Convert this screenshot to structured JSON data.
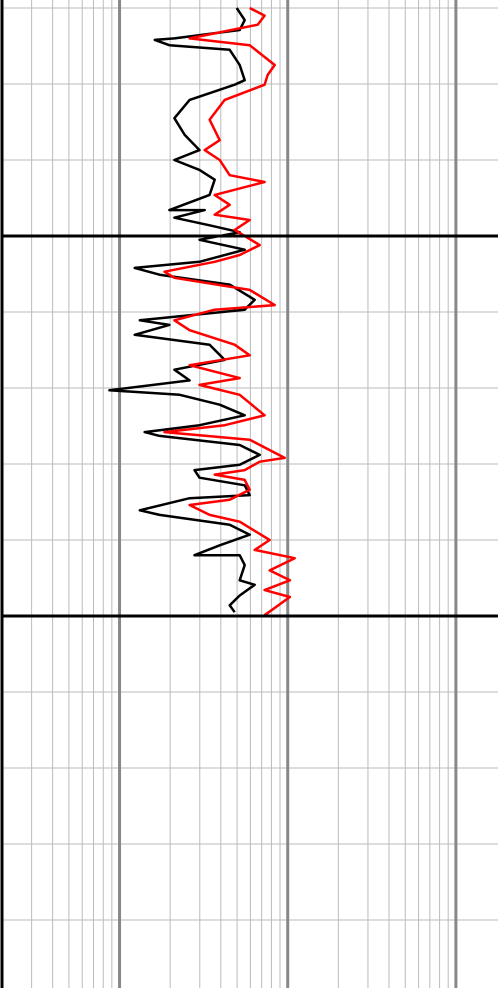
{
  "chart_data": {
    "type": "log_track",
    "xscale": "log",
    "xlim": [
      0.2,
      178
    ],
    "xticks": [
      0.2,
      0.3,
      0.4,
      0.5,
      0.6,
      0.7,
      0.8,
      0.9,
      1,
      2,
      3,
      4,
      5,
      6,
      7,
      8,
      9,
      10,
      20,
      30,
      40,
      50,
      60,
      70,
      80,
      90,
      100
    ],
    "x_major_ticks": [
      1,
      10,
      100
    ],
    "ylim": [
      18.95,
      148.95
    ],
    "y_inverted": true,
    "yticks": [
      20,
      30,
      40,
      50,
      60,
      70,
      80,
      90,
      100,
      110,
      120,
      130,
      140
    ],
    "y_major_ticks": [
      50,
      100
    ],
    "grid": true,
    "series": [
      {
        "color": "#000000",
        "depth": [
          20.0,
          21.6,
          22.9,
          24.0,
          24.2,
          24.9,
          25.5,
          27.5,
          29.5,
          30.1,
          32.1,
          34.5,
          36.7,
          38.7,
          40.0,
          41.3,
          42.6,
          44.6,
          46.6,
          46.6,
          47.6,
          48.6,
          49.5,
          50.5,
          51.8,
          53.4,
          54.2,
          55.1,
          56.4,
          58.4,
          59.7,
          61.1,
          61.7,
          63.0,
          64.3,
          66.3,
          67.6,
          69.0,
          70.3,
          70.9,
          72.2,
          73.6,
          74.9,
          75.8,
          76.3,
          77.5,
          78.8,
          80.1,
          80.8,
          81.8,
          82.8,
          84.1,
          84.5,
          86.1,
          86.7,
          88.0,
          89.3,
          90.7,
          92.0,
          92.0,
          93.3,
          95.3,
          95.9,
          97.3,
          98.6,
          99.5
        ],
        "values": [
          4.97,
          5.55,
          5.18,
          2.12,
          1.62,
          1.98,
          4.52,
          5.18,
          5.55,
          4.84,
          2.61,
          2.12,
          2.44,
          2.99,
          2.12,
          2.99,
          3.68,
          3.43,
          1.98,
          3.21,
          2.12,
          3.43,
          5.18,
          2.99,
          5.55,
          2.99,
          1.23,
          1.73,
          4.52,
          6.36,
          5.55,
          1.32,
          1.98,
          1.23,
          3.43,
          4.22,
          2.12,
          2.61,
          0.87,
          2.28,
          3.94,
          5.55,
          2.99,
          1.41,
          1.73,
          5.18,
          6.81,
          5.18,
          2.79,
          2.99,
          5.55,
          5.94,
          2.61,
          1.32,
          1.73,
          4.52,
          5.94,
          3.94,
          2.79,
          5.18,
          5.55,
          5.18,
          6.36,
          5.18,
          4.52,
          4.84
        ]
      },
      {
        "color": "#ff0000",
        "depth": [
          20.0,
          21.0,
          22.2,
          24.0,
          24.9,
          27.5,
          28.8,
          30.1,
          32.1,
          34.7,
          37.4,
          38.7,
          40.0,
          42.0,
          42.9,
          44.6,
          45.9,
          47.2,
          47.9,
          49.2,
          51.2,
          52.5,
          53.4,
          54.7,
          55.5,
          57.1,
          59.1,
          59.7,
          61.1,
          62.4,
          64.3,
          65.7,
          67.0,
          68.7,
          69.6,
          70.9,
          73.6,
          74.9,
          75.8,
          76.8,
          79.2,
          79.7,
          80.8,
          81.4,
          82.1,
          83.4,
          84.7,
          85.4,
          86.7,
          87.6,
          90.0,
          91.3,
          92.4,
          94.0,
          95.3,
          96.6,
          97.5,
          99.9
        ],
        "values": [
          5.94,
          7.29,
          6.63,
          2.61,
          5.94,
          8.37,
          7.6,
          7.29,
          4.22,
          3.43,
          3.94,
          3.21,
          3.94,
          4.52,
          7.29,
          3.68,
          4.52,
          3.68,
          5.94,
          4.84,
          6.81,
          5.18,
          3.68,
          1.85,
          2.12,
          5.94,
          8.37,
          3.68,
          2.12,
          2.61,
          4.84,
          5.94,
          2.61,
          5.18,
          2.99,
          5.18,
          7.29,
          4.22,
          1.85,
          5.94,
          9.6,
          6.81,
          5.55,
          3.68,
          5.55,
          5.94,
          4.52,
          2.61,
          3.43,
          5.18,
          7.81,
          6.36,
          11.0,
          7.81,
          10.3,
          7.29,
          10.3,
          7.29
        ]
      }
    ]
  }
}
